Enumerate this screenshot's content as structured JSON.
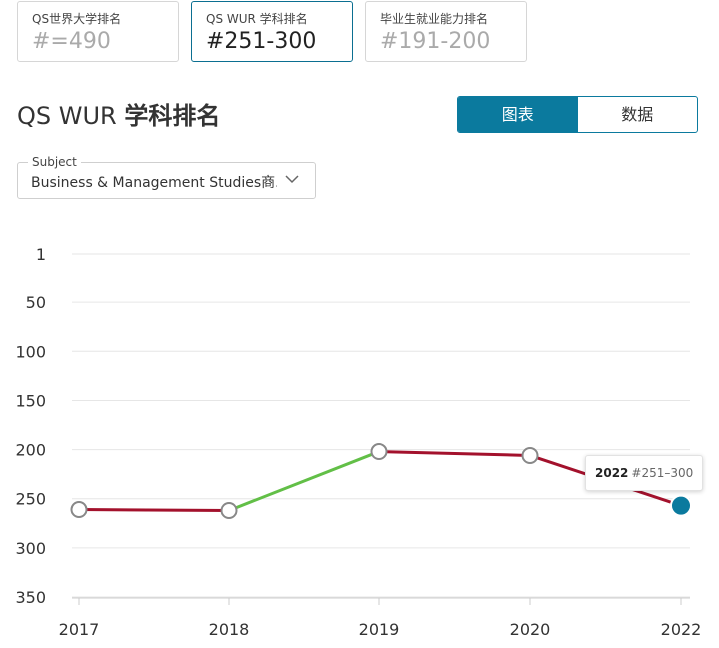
{
  "rank_cards": [
    {
      "caption": "QS世界大学排名",
      "value": "#=490",
      "active": false
    },
    {
      "caption": "QS WUR 学科排名",
      "value": "#251-300",
      "active": true
    },
    {
      "caption": "毕业生就业能力排名",
      "value": "#191-200",
      "active": false
    }
  ],
  "heading": {
    "prefix": "QS WUR ",
    "bold": "学科排名"
  },
  "view_toggle": {
    "chart_label": "图表",
    "data_label": "数据",
    "selected": "图表"
  },
  "subject_select": {
    "legend": "Subject",
    "value": "Business & Management Studies商..."
  },
  "colors": {
    "accent": "#0b7a9e",
    "worse": "#a3112c",
    "better": "#62bf47",
    "grid": "#e6e6e6"
  },
  "icons": {
    "select_arrow": "chevron-down-icon"
  },
  "chart_data": {
    "type": "line",
    "x": [
      "2017",
      "2018",
      "2019",
      "2020",
      "2022"
    ],
    "y": [
      261,
      262,
      202,
      206,
      257
    ],
    "y_ticks": [
      "1",
      "50",
      "100",
      "150",
      "200",
      "250",
      "300",
      "350"
    ],
    "ylim": [
      1,
      350
    ],
    "y_inverted": true,
    "grid": true,
    "segment_colors": [
      "worse",
      "better",
      "worse",
      "worse"
    ],
    "highlight": {
      "year": "2022",
      "rank": "#251–300"
    }
  }
}
